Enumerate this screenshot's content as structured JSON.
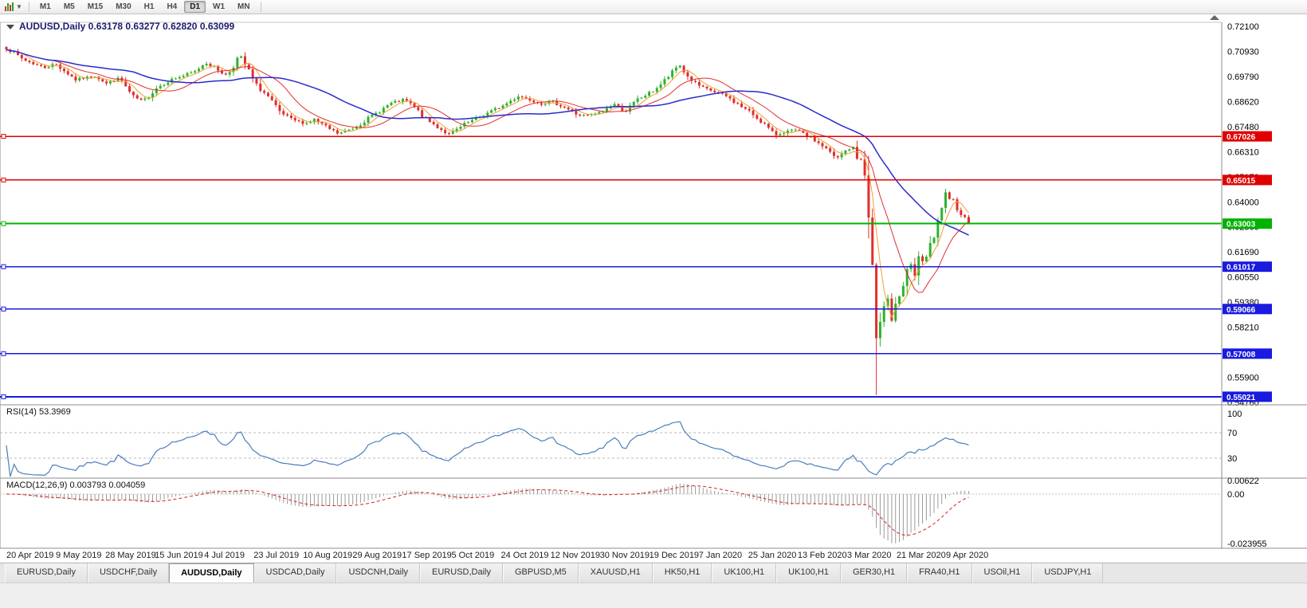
{
  "toolbar": {
    "timeframes": [
      "M1",
      "M5",
      "M15",
      "M30",
      "H1",
      "H4",
      "D1",
      "W1",
      "MN"
    ],
    "active_timeframe": "D1",
    "caret_glyph": "▼"
  },
  "chart": {
    "title": "AUDUSD,Daily",
    "ohlc": {
      "open": "0.63178",
      "high": "0.63277",
      "low": "0.62820",
      "close": "0.63099"
    }
  },
  "chart_data": {
    "type": "candlestick",
    "symbol": "AUDUSD",
    "timeframe": "Daily",
    "colors": {
      "up": "#2db32d",
      "down": "#e12e2e",
      "separator": "#8c8c8c",
      "axis_text": "#000000"
    },
    "price_axis": {
      "max": 0.721,
      "min": 0.5476,
      "labels": [
        "0.72100",
        "0.70930",
        "0.69790",
        "0.68620",
        "0.67480",
        "0.66310",
        "0.65170",
        "0.64000",
        "0.62860",
        "0.61690",
        "0.60550",
        "0.59380",
        "0.58210",
        "0.57040",
        "0.55900",
        "0.54760"
      ]
    },
    "x_axis_dates": [
      "20 Apr 2019",
      "9 May 2019",
      "28 May 2019",
      "15 Jun 2019",
      "4 Jul 2019",
      "23 Jul 2019",
      "10 Aug 2019",
      "29 Aug 2019",
      "17 Sep 2019",
      "5 Oct 2019",
      "24 Oct 2019",
      "12 Nov 2019",
      "30 Nov 2019",
      "19 Dec 2019",
      "7 Jan 2020",
      "25 Jan 2020",
      "13 Feb 2020",
      "3 Mar 2020",
      "21 Mar 2020",
      "9 Apr 2020"
    ],
    "candles_count": 251,
    "crash_low": 0.551,
    "close_path_anchors": [
      [
        0.0,
        0.7111
      ],
      [
        0.018,
        0.7056
      ],
      [
        0.039,
        0.7019
      ],
      [
        0.051,
        0.7037
      ],
      [
        0.072,
        0.6964
      ],
      [
        0.093,
        0.6982
      ],
      [
        0.104,
        0.6946
      ],
      [
        0.118,
        0.6971
      ],
      [
        0.13,
        0.689
      ],
      [
        0.142,
        0.6861
      ],
      [
        0.156,
        0.6927
      ],
      [
        0.171,
        0.6964
      ],
      [
        0.184,
        0.6982
      ],
      [
        0.196,
        0.7001
      ],
      [
        0.207,
        0.7045
      ],
      [
        0.217,
        0.7019
      ],
      [
        0.229,
        0.6982
      ],
      [
        0.242,
        0.7074
      ],
      [
        0.25,
        0.7019
      ],
      [
        0.258,
        0.6946
      ],
      [
        0.271,
        0.689
      ],
      [
        0.283,
        0.6817
      ],
      [
        0.296,
        0.678
      ],
      [
        0.311,
        0.6762
      ],
      [
        0.32,
        0.678
      ],
      [
        0.333,
        0.6743
      ],
      [
        0.345,
        0.6714
      ],
      [
        0.362,
        0.6743
      ],
      [
        0.374,
        0.678
      ],
      [
        0.387,
        0.6817
      ],
      [
        0.399,
        0.6854
      ],
      [
        0.414,
        0.6872
      ],
      [
        0.424,
        0.6835
      ],
      [
        0.436,
        0.678
      ],
      [
        0.449,
        0.6743
      ],
      [
        0.461,
        0.6707
      ],
      [
        0.465,
        0.6725
      ],
      [
        0.478,
        0.6762
      ],
      [
        0.49,
        0.6788
      ],
      [
        0.503,
        0.6817
      ],
      [
        0.517,
        0.6846
      ],
      [
        0.532,
        0.689
      ],
      [
        0.544,
        0.6872
      ],
      [
        0.556,
        0.6854
      ],
      [
        0.568,
        0.6861
      ],
      [
        0.581,
        0.6835
      ],
      [
        0.594,
        0.68
      ],
      [
        0.606,
        0.6799
      ],
      [
        0.62,
        0.6817
      ],
      [
        0.631,
        0.6854
      ],
      [
        0.643,
        0.6817
      ],
      [
        0.656,
        0.6872
      ],
      [
        0.671,
        0.6909
      ],
      [
        0.681,
        0.6946
      ],
      [
        0.693,
        0.7001
      ],
      [
        0.699,
        0.7037
      ],
      [
        0.707,
        0.6982
      ],
      [
        0.716,
        0.6946
      ],
      [
        0.723,
        0.6927
      ],
      [
        0.735,
        0.6909
      ],
      [
        0.747,
        0.689
      ],
      [
        0.759,
        0.6854
      ],
      [
        0.774,
        0.681
      ],
      [
        0.787,
        0.6762
      ],
      [
        0.798,
        0.6707
      ],
      [
        0.81,
        0.6725
      ],
      [
        0.822,
        0.6732
      ],
      [
        0.826,
        0.6717
      ],
      [
        0.838,
        0.669
      ],
      [
        0.85,
        0.6652
      ],
      [
        0.863,
        0.6597
      ],
      [
        0.873,
        0.664
      ],
      [
        0.879,
        0.6652
      ],
      [
        0.885,
        0.659
      ],
      [
        0.889,
        0.661
      ],
      [
        0.893,
        0.648
      ],
      [
        0.897,
        0.628
      ],
      [
        0.901,
        0.605
      ],
      [
        0.904,
        0.577
      ],
      [
        0.908,
        0.583
      ],
      [
        0.912,
        0.59
      ],
      [
        0.916,
        0.597
      ],
      [
        0.92,
        0.587
      ],
      [
        0.924,
        0.594
      ],
      [
        0.929,
        0.597
      ],
      [
        0.934,
        0.605
      ],
      [
        0.939,
        0.611
      ],
      [
        0.944,
        0.606
      ],
      [
        0.949,
        0.615
      ],
      [
        0.954,
        0.612
      ],
      [
        0.959,
        0.619
      ],
      [
        0.964,
        0.623
      ],
      [
        0.969,
        0.632
      ],
      [
        0.975,
        0.644
      ],
      [
        0.98,
        0.64
      ],
      [
        0.985,
        0.641
      ],
      [
        0.99,
        0.636
      ],
      [
        0.995,
        0.633
      ],
      [
        1.0,
        0.631
      ]
    ],
    "hlines": [
      {
        "price": 0.67026,
        "label": "0.67026",
        "color": "#e00000",
        "width": 1.6
      },
      {
        "price": 0.65015,
        "label": "0.65015",
        "color": "#e00000",
        "width": 1.4
      },
      {
        "price": 0.63003,
        "label": "0.63003",
        "color": "#00b300",
        "width": 2.2
      },
      {
        "price": 0.61017,
        "label": "0.61017",
        "color": "#1a1ae0",
        "width": 1.8
      },
      {
        "price": 0.59066,
        "label": "0.59066",
        "color": "#1a1ae0",
        "width": 1.8
      },
      {
        "price": 0.57008,
        "label": "0.57008",
        "color": "#1a1ae0",
        "width": 1.8
      },
      {
        "price": 0.55021,
        "label": "0.55021",
        "color": "#1a1ae0",
        "width": 2.2
      }
    ],
    "moving_averages": [
      {
        "period": 5,
        "color": "#f0a030",
        "width": 1
      },
      {
        "period": 13,
        "color": "#e12e2e",
        "width": 1
      },
      {
        "period": 34,
        "color": "#2a2ace",
        "width": 1.5
      }
    ],
    "rsi": {
      "label": "RSI(14)",
      "value": "53.3969",
      "period": 14,
      "levels": [
        70,
        30
      ],
      "axis_labels": [
        "100",
        "70",
        "30"
      ],
      "color": "#4a7ebb"
    },
    "macd": {
      "label": "MACD(12,26,9)",
      "values": "0.003793 0.004059",
      "fast": 12,
      "slow": 26,
      "signal": 9,
      "axis_labels": [
        "0.00622",
        "0.00",
        "-0.023955"
      ],
      "max": 0.00622,
      "min": -0.023955,
      "hist_color": "#9a9a9a",
      "signal_color": "#d42020"
    }
  },
  "tabs": {
    "items": [
      "EURUSD,Daily",
      "USDCHF,Daily",
      "AUDUSD,Daily",
      "USDCAD,Daily",
      "USDCNH,Daily",
      "EURUSD,Daily",
      "GBPUSD,M5",
      "XAUUSD,H1",
      "HK50,H1",
      "UK100,H1",
      "UK100,H1",
      "GER30,H1",
      "FRA40,H1",
      "USOil,H1",
      "USDJPY,H1"
    ],
    "active_index": 2
  }
}
